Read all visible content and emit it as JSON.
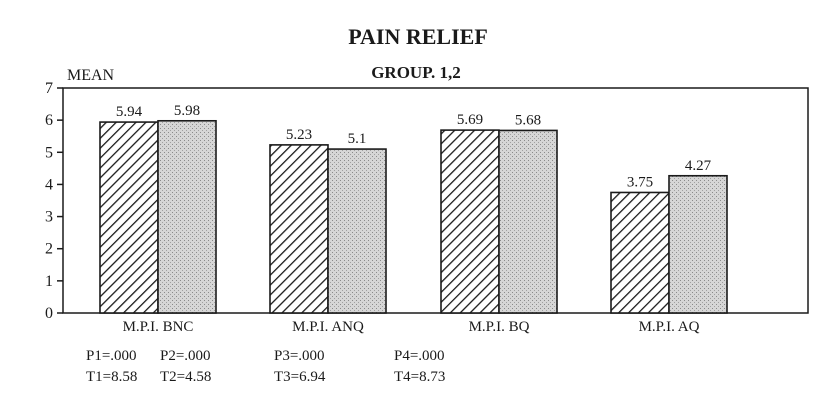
{
  "chart_data": {
    "type": "bar",
    "title": "PAIN RELIEF",
    "subtitle": "GROUP. 1,2",
    "ylabel": "MEAN",
    "xlabel": "",
    "ylim": [
      0,
      7
    ],
    "yticks": [
      0,
      1,
      2,
      3,
      4,
      5,
      6,
      7
    ],
    "grid": false,
    "categories": [
      "M.P.I. BNC",
      "M.P.I. ANQ",
      "M.P.I. BQ",
      "M.P.I. AQ"
    ],
    "series": [
      {
        "values": [
          5.94,
          5.23,
          5.69,
          3.75
        ],
        "labels": [
          "5.94",
          "5.23",
          "5.69",
          "3.75"
        ],
        "pattern": "diagonal-hatch"
      },
      {
        "values": [
          5.98,
          5.1,
          5.68,
          4.27
        ],
        "labels": [
          "5.98",
          "5.1",
          "5.68",
          "4.27"
        ],
        "pattern": "stipple"
      }
    ],
    "annotations": [
      {
        "p": "P1=.000",
        "t": "T1=8.58"
      },
      {
        "p": "P2=.000",
        "t": "T2=4.58"
      },
      {
        "p": "P3=.000",
        "t": "T3=6.94"
      },
      {
        "p": "P4=.000",
        "t": "T4=8.73"
      }
    ]
  },
  "colors": {
    "ink": "#1a1a1a",
    "stipple_fill": "#d6d6d6",
    "background": "#ffffff"
  }
}
